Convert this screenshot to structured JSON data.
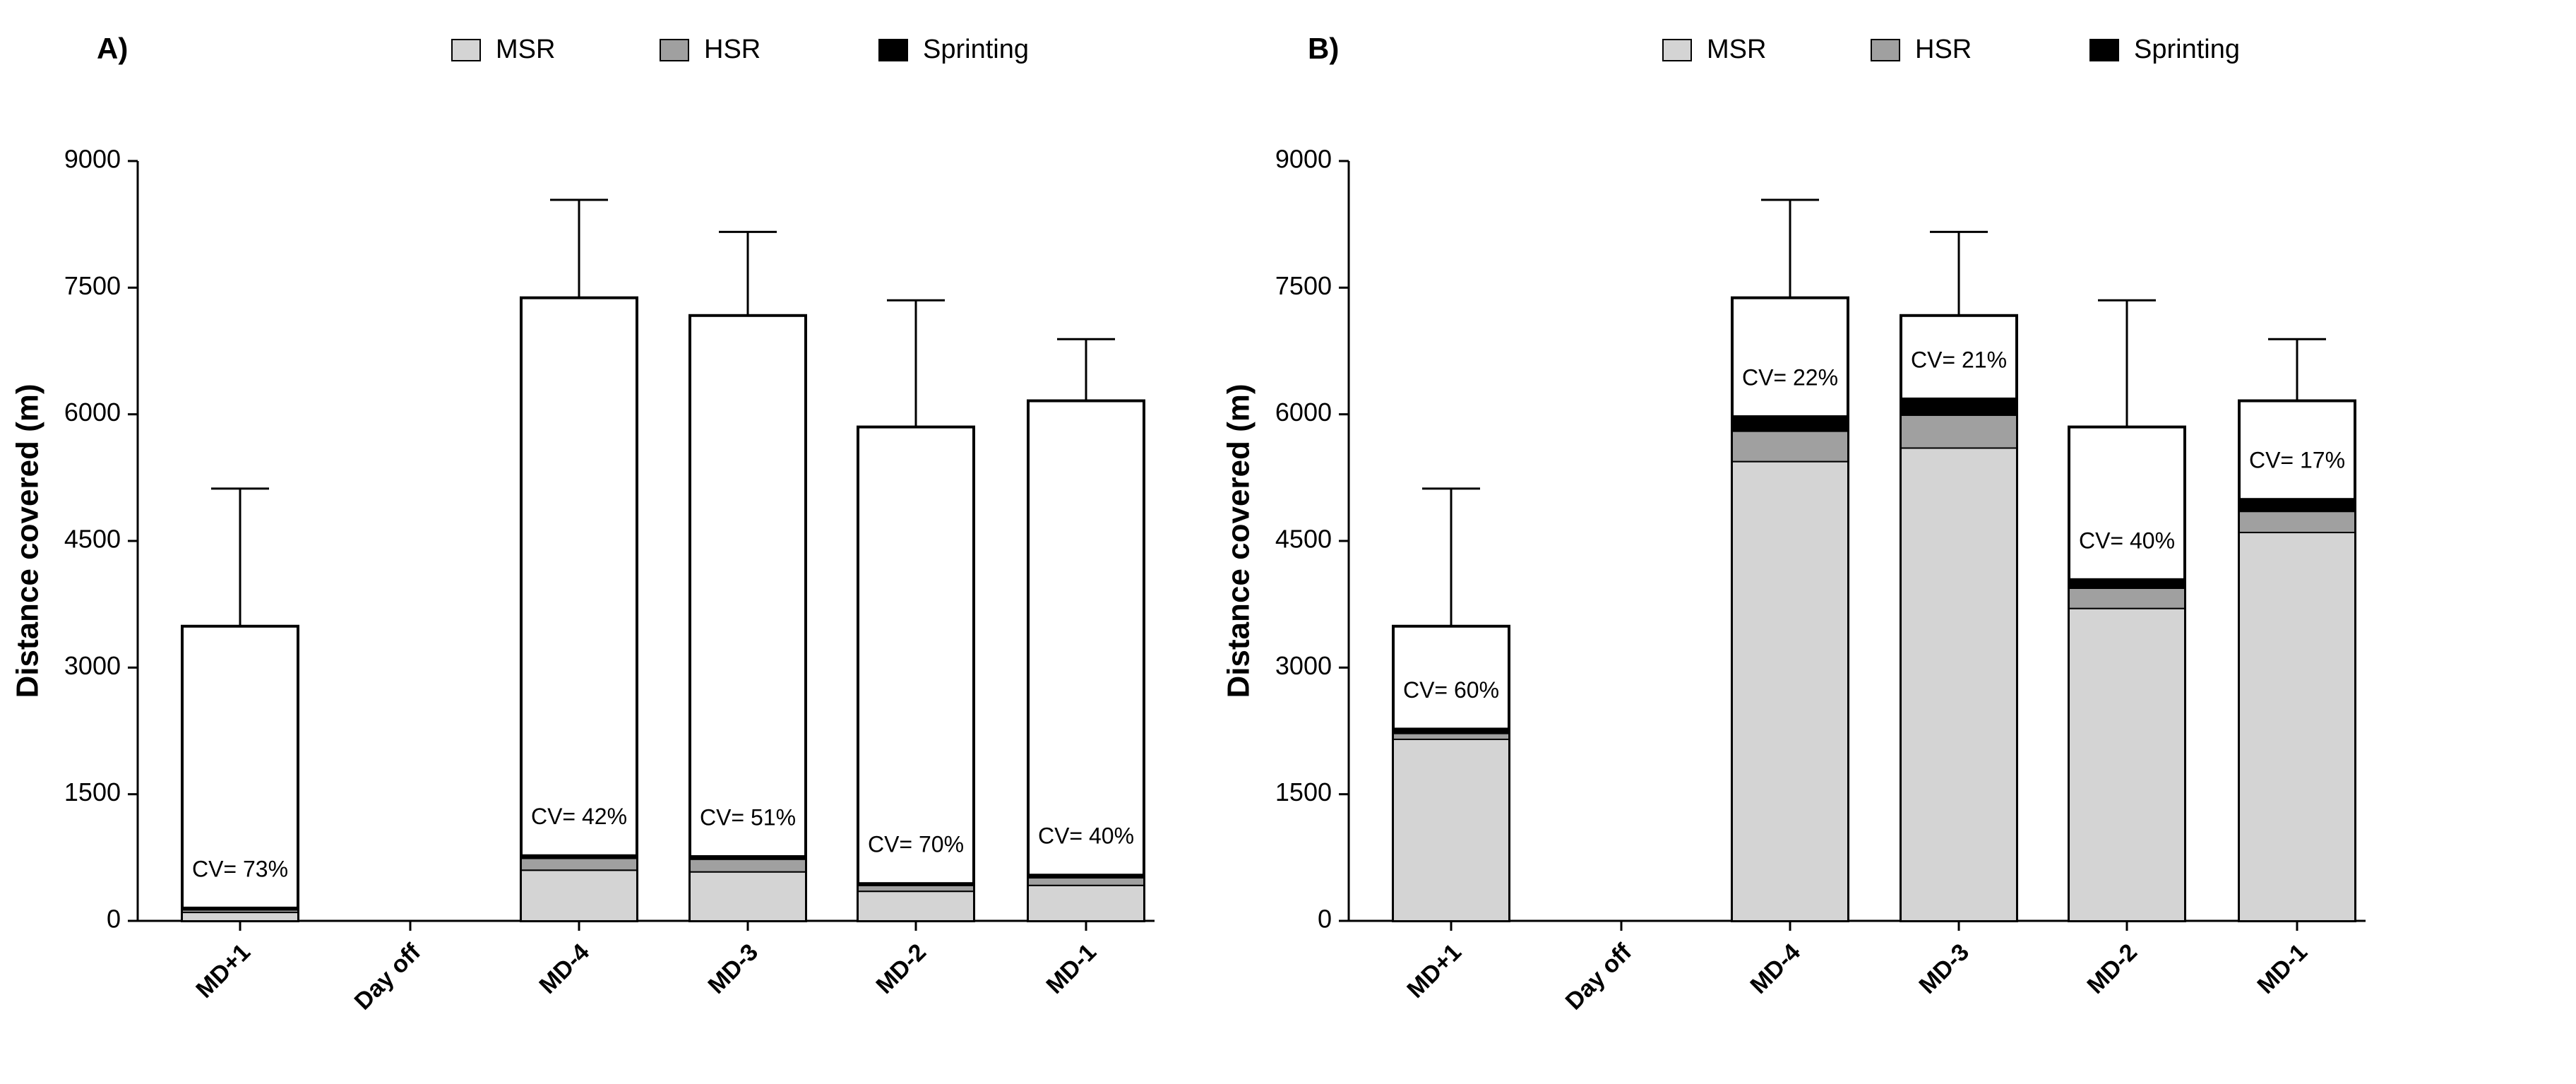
{
  "chart_data": [
    {
      "type": "bar",
      "title": "A)",
      "ylabel": "Distance covered (m)",
      "categories": [
        "MD+1",
        "Day off",
        "MD-4",
        "MD-3",
        "MD-2",
        "MD-1"
      ],
      "totals": [
        3490,
        null,
        7380,
        7170,
        5850,
        6160
      ],
      "errors": [
        1630,
        null,
        1160,
        990,
        1500,
        730
      ],
      "series": [
        {
          "name": "MSR",
          "color": "#d4d4d4",
          "values": [
            100,
            null,
            600,
            580,
            350,
            420
          ]
        },
        {
          "name": "HSR",
          "color": "#a0a0a0",
          "values": [
            30,
            null,
            140,
            150,
            70,
            90
          ]
        },
        {
          "name": "Sprinting",
          "color": "#000000",
          "values": [
            30,
            null,
            40,
            40,
            30,
            40
          ]
        }
      ],
      "annotations": [
        "CV= 73%",
        null,
        "CV= 42%",
        "CV= 51%",
        "CV= 70%",
        "CV= 40%"
      ],
      "ylim": [
        0,
        9000
      ],
      "yticks": [
        0,
        1500,
        3000,
        4500,
        6000,
        7500,
        9000
      ],
      "legend": "top"
    },
    {
      "type": "bar",
      "title": "B)",
      "ylabel": "Distance covered (m)",
      "categories": [
        "MD+1",
        "Day off",
        "MD-4",
        "MD-3",
        "MD-2",
        "MD-1"
      ],
      "totals": [
        3490,
        null,
        7380,
        7170,
        5850,
        6160
      ],
      "errors": [
        1630,
        null,
        1160,
        990,
        1500,
        730
      ],
      "series": [
        {
          "name": "MSR",
          "color": "#d4d4d4",
          "values": [
            2150,
            null,
            5440,
            5600,
            3700,
            4600
          ]
        },
        {
          "name": "HSR",
          "color": "#a0a0a0",
          "values": [
            70,
            null,
            360,
            390,
            240,
            250
          ]
        },
        {
          "name": "Sprinting",
          "color": "#000000",
          "values": [
            60,
            null,
            180,
            200,
            110,
            150
          ]
        }
      ],
      "annotations": [
        "CV= 60%",
        null,
        "CV= 22%",
        "CV= 21%",
        "CV= 40%",
        "CV= 17%"
      ],
      "ylim": [
        0,
        9000
      ],
      "yticks": [
        0,
        1500,
        3000,
        4500,
        6000,
        7500,
        9000
      ],
      "legend": "top"
    }
  ]
}
